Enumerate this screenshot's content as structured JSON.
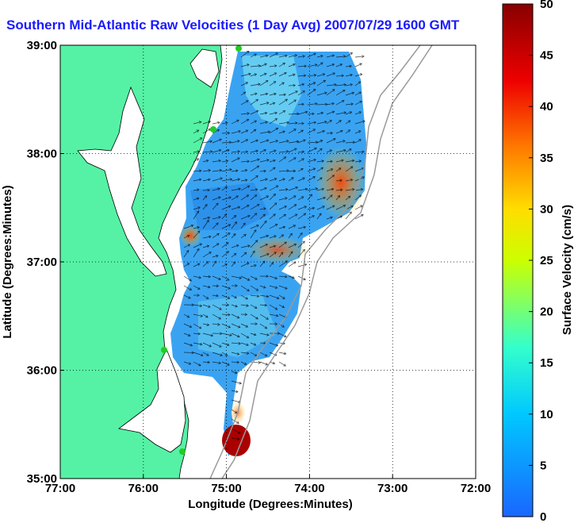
{
  "title": "Southern Mid-Atlantic Raw Velocities (1 Day Avg) 2007/07/29 1600 GMT",
  "map": {
    "x_axis": {
      "label": "Longitude (Degrees:Minutes)",
      "ticks": [
        "77:00",
        "76:00",
        "75:00",
        "74:00",
        "73:00",
        "72:00"
      ],
      "range": [
        -77,
        -72
      ]
    },
    "y_axis": {
      "label": "Latitude (Degrees:Minutes)",
      "ticks": [
        "39:00",
        "38:00",
        "37:00",
        "36:00",
        "35:00"
      ],
      "range": [
        35,
        39
      ]
    },
    "grid": "dotted",
    "land_color": "#55f2a5",
    "station_color": "#22cc22"
  },
  "colorbar": {
    "label": "Surface Velocity (cm/s)",
    "ticks": [
      "50",
      "45",
      "40",
      "35",
      "30",
      "25",
      "20",
      "15",
      "10",
      "5",
      "0"
    ],
    "range": [
      0,
      50
    ],
    "colors": [
      "#1a66ff",
      "#00c8ff",
      "#33ffcc",
      "#ccff00",
      "#ffcc00",
      "#ff6600",
      "#dd0000",
      "#880000"
    ]
  }
}
